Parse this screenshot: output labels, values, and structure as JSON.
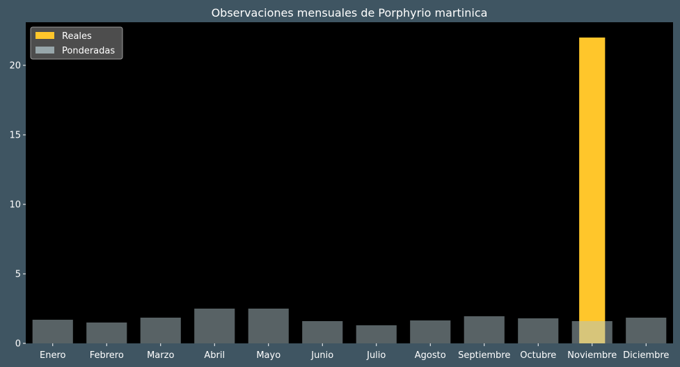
{
  "chart_data": {
    "type": "bar",
    "title": "Observaciones mensuales de Porphyrio martinica",
    "xlabel": "",
    "ylabel": "",
    "categories": [
      "Enero",
      "Febrero",
      "Marzo",
      "Abril",
      "Mayo",
      "Junio",
      "Julio",
      "Agosto",
      "Septiembre",
      "Octubre",
      "Noviembre",
      "Diciembre"
    ],
    "series": [
      {
        "name": "Reales",
        "color": "#ffc62b",
        "values": [
          0,
          0,
          0,
          0,
          0,
          0,
          0,
          0,
          0,
          0,
          22,
          0
        ]
      },
      {
        "name": "Ponderadas",
        "color": "#b0c4c9",
        "opacity": 0.5,
        "values": [
          1.7,
          1.5,
          1.85,
          2.5,
          2.5,
          1.6,
          1.3,
          1.65,
          1.95,
          1.8,
          1.6,
          1.85
        ]
      }
    ],
    "ylim": [
      0,
      23.1
    ],
    "yticks": [
      0,
      5,
      10,
      15,
      20
    ],
    "grid": false,
    "legend": "top-left",
    "colors": {
      "figure_background": "#3f5562",
      "plot_background": "#000000",
      "text": "#ffffff"
    }
  }
}
